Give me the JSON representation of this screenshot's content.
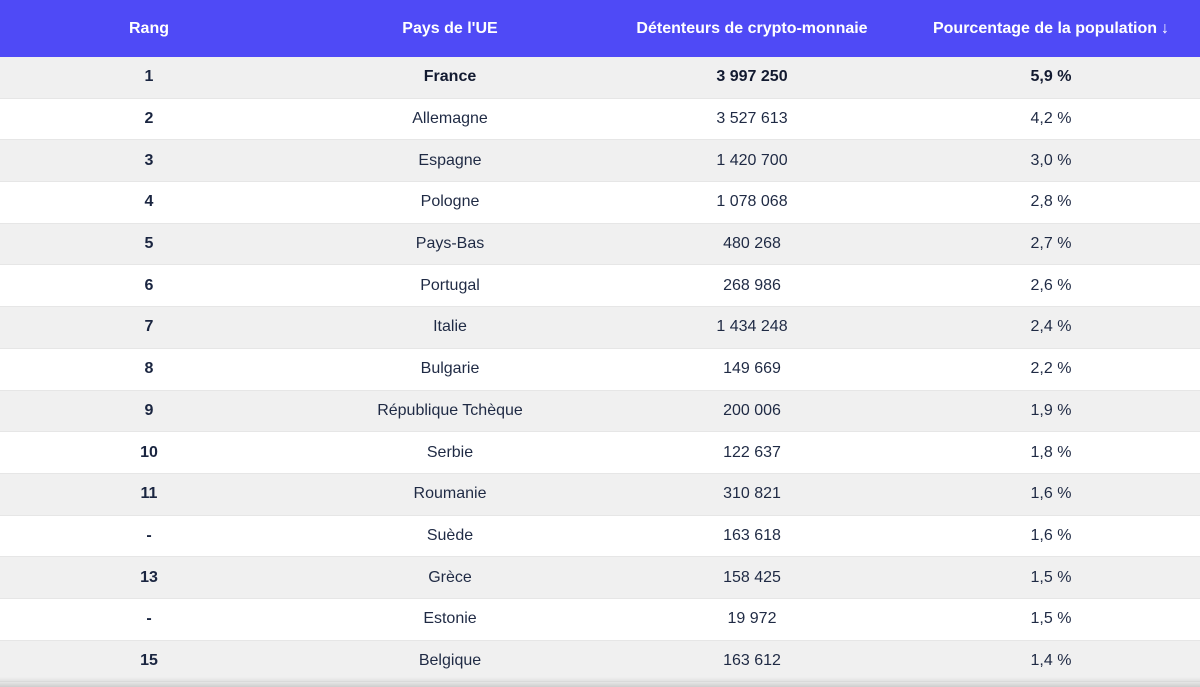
{
  "chart_data": {
    "type": "table",
    "columns": [
      "Rang",
      "Pays de l'UE",
      "Détenteurs de crypto-monnaie",
      "Pourcentage de la population"
    ],
    "sorted_column": "Pourcentage de la population",
    "sort_direction": "descending",
    "sort_indicator": "↓",
    "rows": [
      {
        "rank": "1",
        "country": "France",
        "holders": "3 997 250",
        "pct": "5,9 %"
      },
      {
        "rank": "2",
        "country": "Allemagne",
        "holders": "3 527 613",
        "pct": "4,2 %"
      },
      {
        "rank": "3",
        "country": "Espagne",
        "holders": "1 420 700",
        "pct": "3,0 %"
      },
      {
        "rank": "4",
        "country": "Pologne",
        "holders": "1 078 068",
        "pct": "2,8 %"
      },
      {
        "rank": "5",
        "country": "Pays-Bas",
        "holders": "480 268",
        "pct": "2,7 %"
      },
      {
        "rank": "6",
        "country": "Portugal",
        "holders": "268 986",
        "pct": "2,6 %"
      },
      {
        "rank": "7",
        "country": "Italie",
        "holders": "1 434 248",
        "pct": "2,4 %"
      },
      {
        "rank": "8",
        "country": "Bulgarie",
        "holders": "149 669",
        "pct": "2,2 %"
      },
      {
        "rank": "9",
        "country": "République Tchèque",
        "holders": "200 006",
        "pct": "1,9 %"
      },
      {
        "rank": "10",
        "country": "Serbie",
        "holders": "122 637",
        "pct": "1,8 %"
      },
      {
        "rank": "11",
        "country": "Roumanie",
        "holders": "310 821",
        "pct": "1,6 %"
      },
      {
        "rank": "-",
        "country": "Suède",
        "holders": "163 618",
        "pct": "1,6 %"
      },
      {
        "rank": "13",
        "country": "Grèce",
        "holders": "158 425",
        "pct": "1,5 %"
      },
      {
        "rank": "-",
        "country": "Estonie",
        "holders": "19 972",
        "pct": "1,5 %"
      },
      {
        "rank": "15",
        "country": "Belgique",
        "holders": "163 612",
        "pct": "1,4 %"
      }
    ]
  },
  "colors": {
    "header_bg": "#4f4af6",
    "header_text": "#ffffff",
    "row_alt": "#f0f0f0",
    "row_base": "#ffffff",
    "body_text": "#1f2a44"
  }
}
